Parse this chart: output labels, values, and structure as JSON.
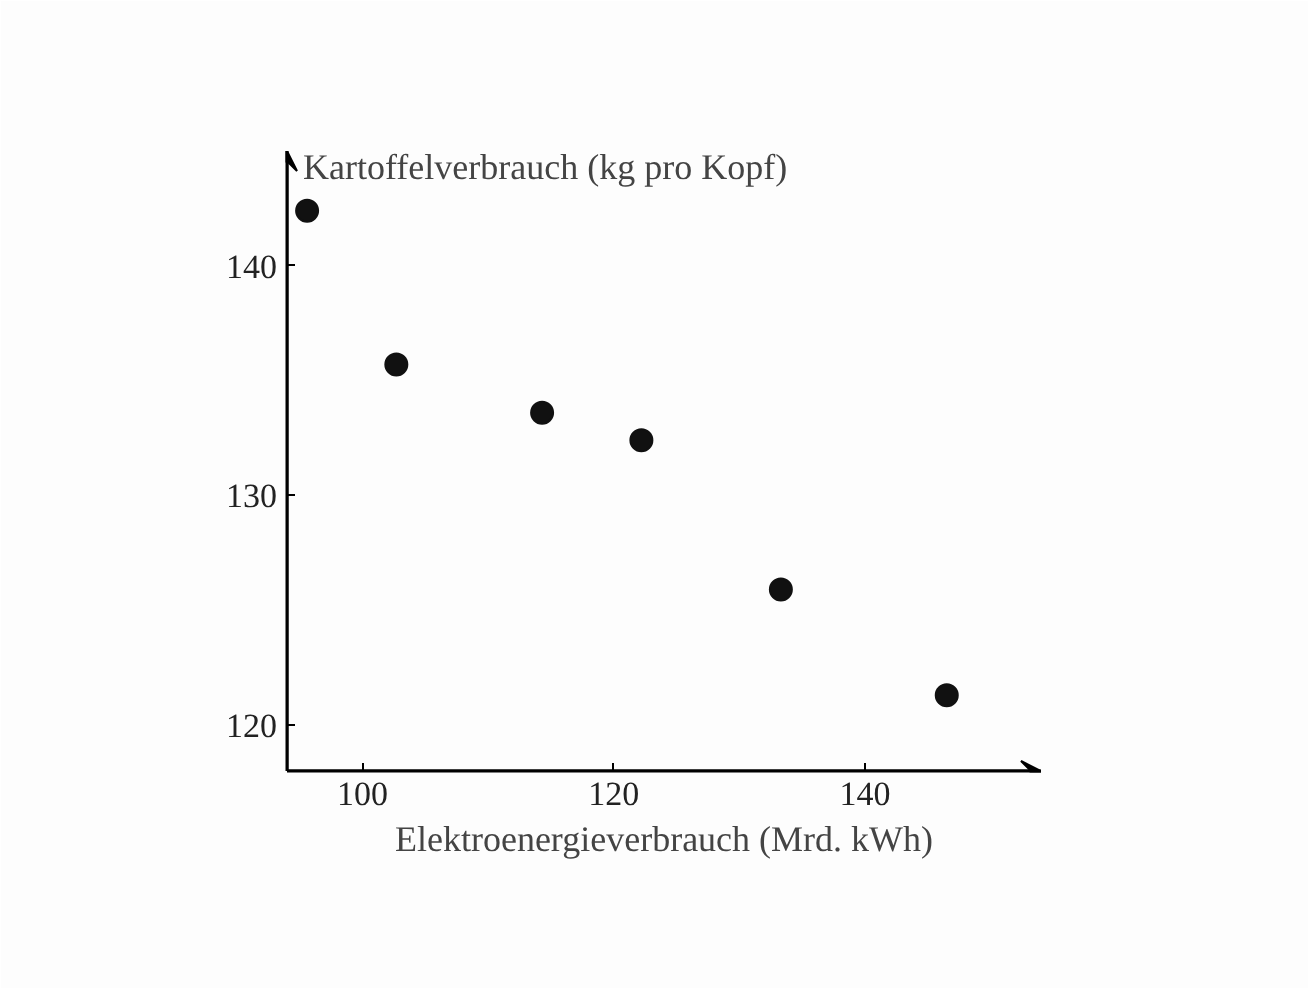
{
  "chart_data": {
    "type": "scatter",
    "xlabel": "Elektroenergieverbrauch (Mrd. kWh)",
    "ylabel": "Kartoffelverbrauch (kg pro Kopf)",
    "x": [
      95.6,
      102.7,
      114.3,
      122.2,
      133.3,
      146.5
    ],
    "series": [
      {
        "color": "#111111",
        "values": [
          142.4,
          135.7,
          133.6,
          132.4,
          125.9,
          121.3
        ]
      }
    ],
    "marker": "circle",
    "xlim": [
      94,
      154
    ],
    "ylim": [
      118,
      145
    ],
    "xticks": [
      100,
      120,
      140
    ],
    "yticks": [
      120,
      130,
      140
    ]
  }
}
